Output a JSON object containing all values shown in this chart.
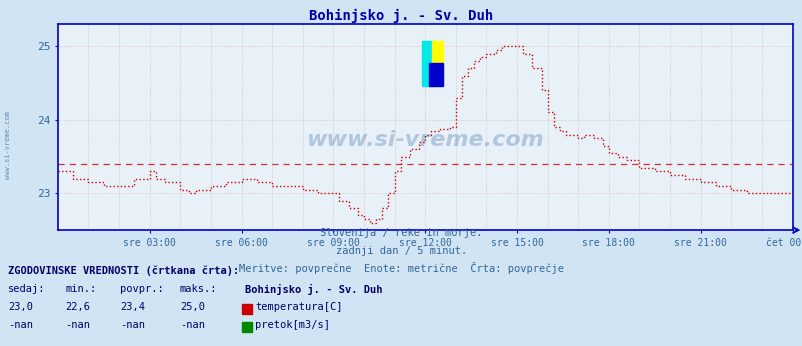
{
  "title": "Bohinjsko j. - Sv. Duh",
  "bg_color": "#d0e4f4",
  "plot_bg_color": "#e8f0f8",
  "grid_color_h": "#c8a0a0",
  "grid_color_v": "#c8c0d0",
  "line_color": "#cc0000",
  "avg_line_color": "#cc0000",
  "axis_color": "#0000cc",
  "text_color": "#336699",
  "subtitle1": "Slovenija / reke in morje.",
  "subtitle2": "zadnji dan / 5 minut.",
  "subtitle3": "Meritve: povprečne  Enote: metrične  Črta: povprečje",
  "hist_label": "ZGODOVINSKE VREDNOSTI (črtkana črta):",
  "col_headers": [
    "sedaj:",
    "min.:",
    "povpr.:",
    "maks.:"
  ],
  "col_values_temp": [
    "23,0",
    "22,6",
    "23,4",
    "25,0"
  ],
  "col_values_pretok": [
    "-nan",
    "-nan",
    "-nan",
    "-nan"
  ],
  "station_name": "Bohinjsko j. - Sv. Duh",
  "legend_temp": "temperatura[C]",
  "legend_pretok": "pretok[m3/s]",
  "watermark": "www.si-vreme.com",
  "ylim": [
    22.5,
    25.3
  ],
  "yticks": [
    23,
    24,
    25
  ],
  "avg_value": 23.4,
  "xtick_labels": [
    "sre 03:00",
    "sre 06:00",
    "sre 09:00",
    "sre 12:00",
    "sre 15:00",
    "sre 18:00",
    "sre 21:00",
    "čet 00:00"
  ],
  "xtick_positions": [
    3,
    6,
    9,
    12,
    15,
    18,
    21,
    24
  ],
  "temp_data": [
    [
      0.0,
      23.3
    ],
    [
      0.3,
      23.3
    ],
    [
      0.5,
      23.2
    ],
    [
      1.0,
      23.15
    ],
    [
      1.5,
      23.1
    ],
    [
      2.0,
      23.1
    ],
    [
      2.5,
      23.2
    ],
    [
      3.0,
      23.3
    ],
    [
      3.2,
      23.2
    ],
    [
      3.5,
      23.15
    ],
    [
      4.0,
      23.05
    ],
    [
      4.3,
      23.0
    ],
    [
      4.5,
      23.05
    ],
    [
      5.0,
      23.1
    ],
    [
      5.5,
      23.15
    ],
    [
      6.0,
      23.2
    ],
    [
      6.5,
      23.15
    ],
    [
      7.0,
      23.1
    ],
    [
      7.5,
      23.1
    ],
    [
      8.0,
      23.05
    ],
    [
      8.5,
      23.0
    ],
    [
      9.0,
      23.0
    ],
    [
      9.2,
      22.9
    ],
    [
      9.5,
      22.8
    ],
    [
      9.8,
      22.7
    ],
    [
      10.0,
      22.65
    ],
    [
      10.2,
      22.6
    ],
    [
      10.4,
      22.65
    ],
    [
      10.6,
      22.8
    ],
    [
      10.8,
      23.0
    ],
    [
      11.0,
      23.3
    ],
    [
      11.2,
      23.5
    ],
    [
      11.5,
      23.6
    ],
    [
      11.8,
      23.7
    ],
    [
      12.0,
      23.8
    ],
    [
      12.2,
      23.85
    ],
    [
      12.5,
      23.88
    ],
    [
      12.8,
      23.9
    ],
    [
      13.0,
      24.3
    ],
    [
      13.2,
      24.6
    ],
    [
      13.4,
      24.7
    ],
    [
      13.6,
      24.8
    ],
    [
      13.8,
      24.85
    ],
    [
      14.0,
      24.9
    ],
    [
      14.3,
      24.95
    ],
    [
      14.5,
      25.0
    ],
    [
      14.8,
      25.0
    ],
    [
      15.0,
      25.0
    ],
    [
      15.2,
      24.9
    ],
    [
      15.5,
      24.7
    ],
    [
      15.8,
      24.4
    ],
    [
      16.0,
      24.1
    ],
    [
      16.2,
      23.9
    ],
    [
      16.4,
      23.85
    ],
    [
      16.6,
      23.8
    ],
    [
      16.8,
      23.8
    ],
    [
      17.0,
      23.75
    ],
    [
      17.2,
      23.8
    ],
    [
      17.5,
      23.75
    ],
    [
      17.8,
      23.65
    ],
    [
      18.0,
      23.55
    ],
    [
      18.3,
      23.5
    ],
    [
      18.6,
      23.45
    ],
    [
      19.0,
      23.35
    ],
    [
      19.5,
      23.3
    ],
    [
      20.0,
      23.25
    ],
    [
      20.5,
      23.2
    ],
    [
      21.0,
      23.15
    ],
    [
      21.5,
      23.1
    ],
    [
      22.0,
      23.05
    ],
    [
      22.5,
      23.0
    ],
    [
      23.0,
      23.0
    ],
    [
      23.5,
      23.0
    ],
    [
      24.0,
      23.0
    ]
  ]
}
